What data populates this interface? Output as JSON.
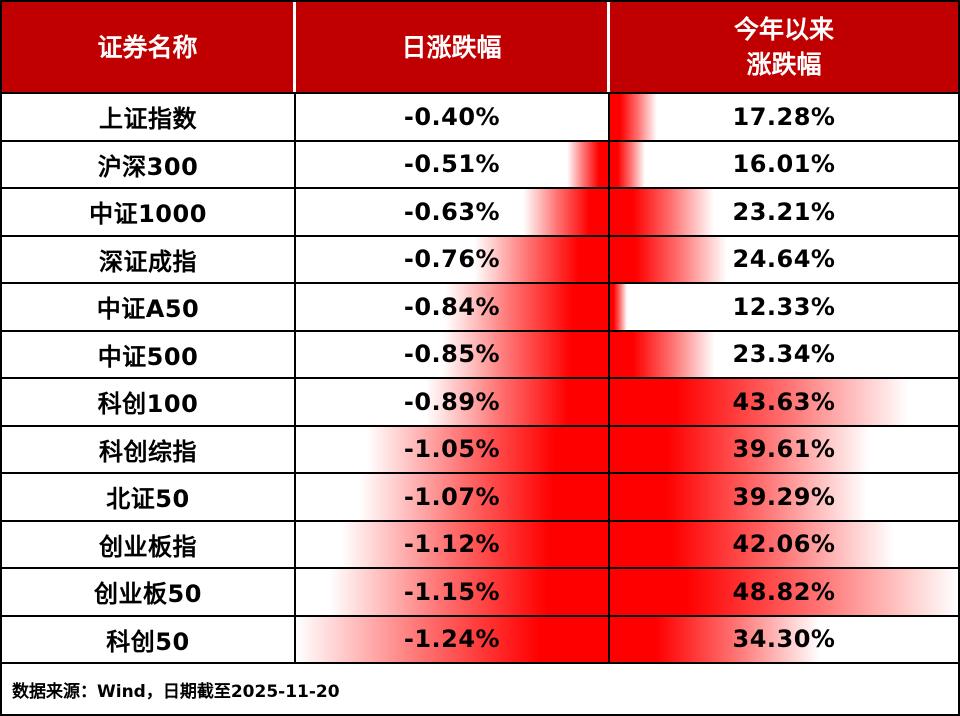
{
  "colors": {
    "header_bg": "#C00000",
    "bar_red": "#FF0000",
    "border": "#000000",
    "header_text": "#FFFFFF",
    "body_text": "#000000"
  },
  "table": {
    "columns": [
      {
        "label": "证券名称"
      },
      {
        "label": "日涨跌幅"
      },
      {
        "label": "今年以来\n涨跌幅"
      }
    ],
    "rows": [
      {
        "name": "上证指数",
        "daily": -0.4,
        "daily_text": "-0.40%",
        "ytd": 17.28,
        "ytd_text": "17.28%"
      },
      {
        "name": "沪深300",
        "daily": -0.51,
        "daily_text": "-0.51%",
        "ytd": 16.01,
        "ytd_text": "16.01%"
      },
      {
        "name": "中证1000",
        "daily": -0.63,
        "daily_text": "-0.63%",
        "ytd": 23.21,
        "ytd_text": "23.21%"
      },
      {
        "name": "深证成指",
        "daily": -0.76,
        "daily_text": "-0.76%",
        "ytd": 24.64,
        "ytd_text": "24.64%"
      },
      {
        "name": "中证A50",
        "daily": -0.84,
        "daily_text": "-0.84%",
        "ytd": 12.33,
        "ytd_text": "12.33%"
      },
      {
        "name": "中证500",
        "daily": -0.85,
        "daily_text": "-0.85%",
        "ytd": 23.34,
        "ytd_text": "23.34%"
      },
      {
        "name": "科创100",
        "daily": -0.89,
        "daily_text": "-0.89%",
        "ytd": 43.63,
        "ytd_text": "43.63%"
      },
      {
        "name": "科创综指",
        "daily": -1.05,
        "daily_text": "-1.05%",
        "ytd": 39.61,
        "ytd_text": "39.61%"
      },
      {
        "name": "北证50",
        "daily": -1.07,
        "daily_text": "-1.07%",
        "ytd": 39.29,
        "ytd_text": "39.29%"
      },
      {
        "name": "创业板指",
        "daily": -1.12,
        "daily_text": "-1.12%",
        "ytd": 42.06,
        "ytd_text": "42.06%"
      },
      {
        "name": "创业板50",
        "daily": -1.15,
        "daily_text": "-1.15%",
        "ytd": 48.82,
        "ytd_text": "48.82%"
      },
      {
        "name": "科创50",
        "daily": -1.24,
        "daily_text": "-1.24%",
        "ytd": 34.3,
        "ytd_text": "34.30%"
      }
    ],
    "daily_bar_scale": {
      "min": 0.4,
      "max": 1.24,
      "min_width_pct": 0
    },
    "ytd_bar_scale": {
      "min": 12.33,
      "max": 48.82,
      "min_width_pct": 5
    }
  },
  "footer": {
    "text": "数据来源：Wind，日期截至2025-11-20"
  },
  "chart_data": {
    "type": "table",
    "title": "",
    "columns": [
      "证券名称",
      "日涨跌幅",
      "今年以来涨跌幅"
    ],
    "categories": [
      "上证指数",
      "沪深300",
      "中证1000",
      "深证成指",
      "中证A50",
      "中证500",
      "科创100",
      "科创综指",
      "北证50",
      "创业板指",
      "创业板50",
      "科创50"
    ],
    "series": [
      {
        "name": "日涨跌幅",
        "unit": "%",
        "values": [
          -0.4,
          -0.51,
          -0.63,
          -0.76,
          -0.84,
          -0.85,
          -0.89,
          -1.05,
          -1.07,
          -1.12,
          -1.15,
          -1.24
        ]
      },
      {
        "name": "今年以来涨跌幅",
        "unit": "%",
        "values": [
          17.28,
          16.01,
          23.21,
          24.64,
          12.33,
          23.34,
          43.63,
          39.61,
          39.29,
          42.06,
          48.82,
          34.3
        ]
      }
    ],
    "layout": {
      "databars": true,
      "databar_color": "#FF0000",
      "daily_bars_anchor": "right",
      "ytd_bars_anchor": "left"
    }
  }
}
